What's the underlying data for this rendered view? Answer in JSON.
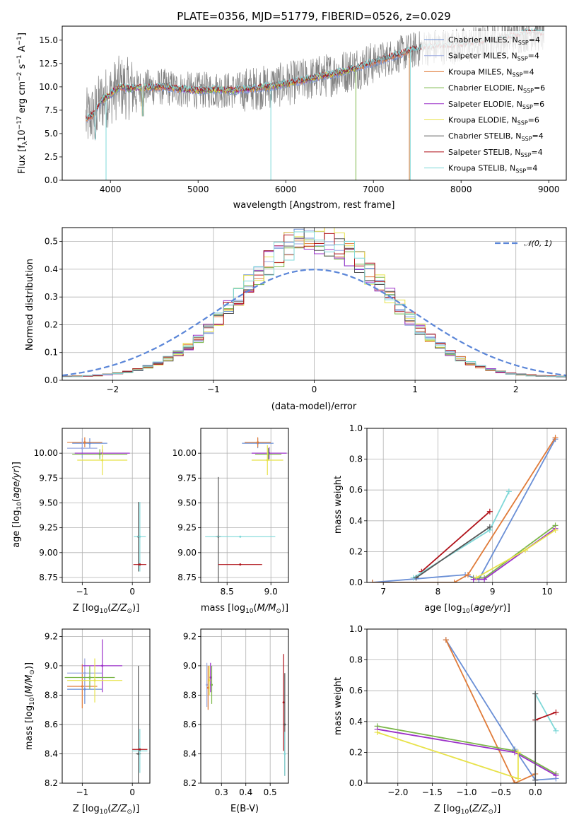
{
  "title": "PLATE=0356, MJD=51779, FIBERID=0526, z=0.029",
  "colors": {
    "Chabrier MILES": "#6a8fd6",
    "Salpeter MILES": "#9aa8e0",
    "Kroupa MILES": "#e07b39",
    "Chabrier ELODIE": "#7ab648",
    "Salpeter ELODIE": "#9b30c8",
    "Kroupa ELODIE": "#e8e24a",
    "Chabrier STELIB": "#555555",
    "Salpeter STELIB": "#b0121a",
    "Kroupa STELIB": "#7fd8d8",
    "data": "#808080",
    "normal": "#5b86d8"
  },
  "chart_data": [
    {
      "id": "spectrum",
      "type": "line",
      "xlabel": "wavelength [Angstrom, rest frame]",
      "ylabel": "Flux [fλ10⁻¹⁷ erg cm⁻² s⁻¹ A⁻¹]",
      "xlim": [
        3450,
        9200
      ],
      "ylim": [
        0,
        16.5
      ],
      "xticks": [
        4000,
        5000,
        6000,
        7000,
        8000,
        9000
      ],
      "yticks": [
        0.0,
        2.5,
        5.0,
        7.5,
        10.0,
        12.5,
        15.0
      ],
      "legend_position": "top-right",
      "legend": [
        "Chabrier MILES, NSSP=4",
        "Salpeter MILES, NSSP=4",
        "Kroupa MILES, NSSP=4",
        "Chabrier ELODIE, NSSP=6",
        "Salpeter ELODIE, NSSP=6",
        "Kroupa ELODIE, NSSP=6",
        "Chabrier STELIB, NSSP=4",
        "Salpeter STELIB, NSSP=4",
        "Kroupa STELIB, NSSP=4"
      ],
      "continuum": {
        "x": [
          3720,
          3800,
          3900,
          4000,
          4100,
          4200,
          4400,
          4600,
          4800,
          5000,
          5200,
          5400,
          5600,
          5800,
          6000,
          6200,
          6400,
          6600,
          6800,
          7000,
          7200,
          7400,
          7600,
          7800,
          8000,
          8200,
          8400,
          8600,
          8800,
          8950
        ],
        "y": [
          6.5,
          7.0,
          8.5,
          9.2,
          10.0,
          9.8,
          9.9,
          10.0,
          9.7,
          9.6,
          9.7,
          9.6,
          9.8,
          10.0,
          10.3,
          10.7,
          11.1,
          11.5,
          12.0,
          12.6,
          13.2,
          13.8,
          14.2,
          14.3,
          14.4,
          14.6,
          15.0,
          15.4,
          15.8,
          15.6
        ]
      },
      "data_noise_amplitude": 2.0
    },
    {
      "id": "residual-histogram",
      "type": "line",
      "xlabel": "(data-model)/error",
      "ylabel": "Normed distribution",
      "xlim": [
        -2.5,
        2.5
      ],
      "ylim": [
        0,
        0.55
      ],
      "xticks": [
        -2,
        -1,
        0,
        1,
        2
      ],
      "yticks": [
        0.0,
        0.1,
        0.2,
        0.3,
        0.4,
        0.5
      ],
      "grid": true,
      "legend_position": "top-right",
      "legend": [
        "𝒩(0, 1)"
      ],
      "bin_width": 0.1,
      "normal": {
        "mean": 0,
        "sigma": 1
      }
    },
    {
      "id": "age-vs-Z",
      "type": "scatter",
      "xlabel": "Z [log10(Z/Z⊙)]",
      "ylabel": "age  [log10(age/yr)]",
      "xlim": [
        -1.4,
        0.35
      ],
      "ylim": [
        8.7,
        10.25
      ],
      "xticks": [
        -1,
        0
      ],
      "yticks": [
        8.75,
        9.0,
        9.25,
        9.5,
        9.75,
        10.0
      ],
      "grid": true,
      "points": [
        {
          "model": "Chabrier MILES",
          "x": -0.85,
          "xerr": 0.35,
          "y": 10.1,
          "yerr": 0.05
        },
        {
          "model": "Kroupa MILES",
          "x": -0.95,
          "xerr": 0.35,
          "y": 10.11,
          "yerr": 0.05
        },
        {
          "model": "Salpeter MILES",
          "x": -1.0,
          "xerr": 0.3,
          "y": 10.05,
          "yerr": 0.1
        },
        {
          "model": "Salpeter ELODIE",
          "x": -0.6,
          "xerr": 0.55,
          "y": 10.0,
          "yerr": 0.04
        },
        {
          "model": "Chabrier ELODIE",
          "x": -0.65,
          "xerr": 0.55,
          "y": 9.99,
          "yerr": 0.05
        },
        {
          "model": "Kroupa ELODIE",
          "x": -0.6,
          "xerr": 0.5,
          "y": 9.93,
          "yerr": 0.15
        },
        {
          "model": "Chabrier STELIB",
          "x": 0.12,
          "xerr": 0.02,
          "y": 9.16,
          "yerr": 0.35
        },
        {
          "model": "Kroupa STELIB",
          "x": 0.15,
          "xerr": 0.12,
          "y": 9.16,
          "yerr": 0.35
        },
        {
          "model": "Salpeter STELIB",
          "x": 0.15,
          "xerr": 0.13,
          "y": 8.88,
          "yerr": 0.0
        }
      ]
    },
    {
      "id": "age-vs-mass",
      "type": "scatter",
      "xlabel": "mass [log10(M/M⊙)]",
      "ylabel": "",
      "xlim": [
        8.2,
        9.2
      ],
      "ylim": [
        8.7,
        10.25
      ],
      "xticks": [
        8.5,
        9.0
      ],
      "yticks": [
        8.75,
        9.0,
        9.25,
        9.5,
        9.75,
        10.0
      ],
      "grid": true,
      "points": [
        {
          "model": "Chabrier MILES",
          "x": 8.85,
          "xerr": 0.18,
          "y": 10.1,
          "yerr": 0.05
        },
        {
          "model": "Kroupa MILES",
          "x": 8.85,
          "xerr": 0.15,
          "y": 10.11,
          "yerr": 0.05
        },
        {
          "model": "Salpeter ELODIE",
          "x": 8.98,
          "xerr": 0.2,
          "y": 10.0,
          "yerr": 0.06
        },
        {
          "model": "Chabrier ELODIE",
          "x": 8.97,
          "xerr": 0.15,
          "y": 9.99,
          "yerr": 0.06
        },
        {
          "model": "Kroupa ELODIE",
          "x": 8.96,
          "xerr": 0.18,
          "y": 9.93,
          "yerr": 0.15
        },
        {
          "model": "Chabrier STELIB",
          "x": 8.4,
          "xerr": 0.03,
          "y": 9.16,
          "yerr": 0.6
        },
        {
          "model": "Kroupa STELIB",
          "x": 8.65,
          "xerr": 0.4,
          "y": 9.16,
          "yerr": 0.0
        },
        {
          "model": "Salpeter STELIB",
          "x": 8.65,
          "xerr": 0.25,
          "y": 8.88,
          "yerr": 0.0
        }
      ]
    },
    {
      "id": "massweight-vs-age",
      "type": "line",
      "xlabel": "age  [log10(age/yr)]",
      "ylabel": "mass weight",
      "xlim": [
        6.7,
        10.35
      ],
      "ylim": [
        0,
        1.0
      ],
      "xticks": [
        7,
        8,
        9,
        10
      ],
      "yticks": [
        0.0,
        0.2,
        0.4,
        0.6,
        0.8,
        1.0
      ],
      "grid": true,
      "series": [
        {
          "model": "Chabrier MILES",
          "x": [
            6.8,
            8.5,
            8.75,
            10.15
          ],
          "y": [
            0.0,
            0.05,
            0.02,
            0.93
          ]
        },
        {
          "model": "Kroupa MILES",
          "x": [
            6.8,
            8.3,
            8.55,
            10.15
          ],
          "y": [
            0.0,
            0.0,
            0.05,
            0.94
          ]
        },
        {
          "model": "Chabrier ELODIE",
          "x": [
            8.65,
            8.85,
            10.15
          ],
          "y": [
            0.03,
            0.03,
            0.37
          ]
        },
        {
          "model": "Salpeter ELODIE",
          "x": [
            8.65,
            8.85,
            10.15
          ],
          "y": [
            0.02,
            0.02,
            0.35
          ]
        },
        {
          "model": "Kroupa ELODIE",
          "x": [
            8.7,
            9.6,
            10.15
          ],
          "y": [
            0.03,
            0.21,
            0.34
          ]
        },
        {
          "model": "Salpeter STELIB",
          "x": [
            7.7,
            8.95
          ],
          "y": [
            0.07,
            0.46
          ]
        },
        {
          "model": "Kroupa STELIB",
          "x": [
            7.55,
            8.95,
            9.3
          ],
          "y": [
            0.03,
            0.34,
            0.59
          ]
        },
        {
          "model": "Chabrier STELIB",
          "x": [
            7.6,
            8.95
          ],
          "y": [
            0.03,
            0.36
          ]
        }
      ]
    },
    {
      "id": "mass-vs-Z",
      "type": "scatter",
      "xlabel": "Z [log10(Z/Z⊙)]",
      "ylabel": "mass [log10(M/M⊙)]",
      "xlim": [
        -1.4,
        0.35
      ],
      "ylim": [
        8.2,
        9.25
      ],
      "xticks": [
        -1,
        0
      ],
      "yticks": [
        8.2,
        8.4,
        8.6,
        8.8,
        9.0,
        9.2
      ],
      "grid": true,
      "points": [
        {
          "model": "Chabrier MILES",
          "x": -0.95,
          "xerr": 0.35,
          "y": 8.84,
          "yerr": 0.1
        },
        {
          "model": "Kroupa MILES",
          "x": -1.0,
          "xerr": 0.3,
          "y": 8.86,
          "yerr": 0.15
        },
        {
          "model": "Salpeter MILES",
          "x": -0.95,
          "xerr": 0.35,
          "y": 8.95,
          "yerr": 0.1
        },
        {
          "model": "Salpeter ELODIE",
          "x": -0.6,
          "xerr": 0.4,
          "y": 9.0,
          "yerr": 0.18
        },
        {
          "model": "Chabrier ELODIE",
          "x": -0.85,
          "xerr": 0.5,
          "y": 8.92,
          "yerr": 0.08
        },
        {
          "model": "Kroupa ELODIE",
          "x": -0.75,
          "xerr": 0.55,
          "y": 8.9,
          "yerr": 0.15
        },
        {
          "model": "Chabrier STELIB",
          "x": 0.12,
          "xerr": 0.05,
          "y": 8.4,
          "yerr": 0.6
        },
        {
          "model": "Kroupa STELIB",
          "x": 0.15,
          "xerr": 0.15,
          "y": 8.42,
          "yerr": 0.15
        },
        {
          "model": "Salpeter STELIB",
          "x": 0.15,
          "xerr": 0.15,
          "y": 8.43,
          "yerr": 0.0
        }
      ]
    },
    {
      "id": "mass-vs-ebv",
      "type": "scatter",
      "xlabel": "E(B-V)",
      "ylabel": "",
      "xlim": [
        0.215,
        0.575
      ],
      "ylim": [
        8.2,
        9.25
      ],
      "xticks": [
        0.3,
        0.4,
        0.5
      ],
      "yticks": [
        8.2,
        8.4,
        8.6,
        8.8,
        9.0,
        9.2
      ],
      "grid": true,
      "points": [
        {
          "model": "Salpeter MILES",
          "x": 0.24,
          "y": 8.87,
          "yerr": 0.15
        },
        {
          "model": "Kroupa MILES",
          "x": 0.245,
          "y": 8.85,
          "yerr": 0.15
        },
        {
          "model": "Salpeter ELODIE",
          "x": 0.255,
          "y": 8.92,
          "yerr": 0.1
        },
        {
          "model": "Chabrier ELODIE",
          "x": 0.26,
          "y": 8.87,
          "yerr": 0.13
        },
        {
          "model": "Kroupa ELODIE",
          "x": 0.25,
          "y": 8.9,
          "yerr": 0.1
        },
        {
          "model": "Salpeter STELIB",
          "x": 0.555,
          "y": 8.75,
          "yerr": 0.33
        },
        {
          "model": "Chabrier STELIB",
          "x": 0.56,
          "y": 8.6,
          "yerr": 0.35
        },
        {
          "model": "Kroupa STELIB",
          "x": 0.56,
          "y": 8.4,
          "yerr": 0.15
        }
      ]
    },
    {
      "id": "massweight-vs-Z",
      "type": "line",
      "xlabel": "Z [log10(Z/Z⊙)]",
      "ylabel": "mass weight",
      "xlim": [
        -2.45,
        0.45
      ],
      "ylim": [
        0,
        1.0
      ],
      "xticks": [
        -2.0,
        -1.5,
        -1.0,
        -0.5,
        0.0
      ],
      "yticks": [
        0.0,
        0.2,
        0.4,
        0.6,
        0.8,
        1.0
      ],
      "grid": true,
      "series": [
        {
          "model": "Chabrier MILES",
          "x": [
            -1.3,
            -0.3,
            0.0,
            0.3
          ],
          "y": [
            0.93,
            0.22,
            0.02,
            0.03
          ]
        },
        {
          "model": "Kroupa MILES",
          "x": [
            -1.3,
            -0.3,
            -0.3,
            0.0
          ],
          "y": [
            0.93,
            0.0,
            0.0,
            0.06
          ]
        },
        {
          "model": "Chabrier ELODIE",
          "x": [
            -2.3,
            -0.3,
            0.3
          ],
          "y": [
            0.37,
            0.21,
            0.06
          ]
        },
        {
          "model": "Salpeter ELODIE",
          "x": [
            -2.3,
            -0.3,
            0.3
          ],
          "y": [
            0.35,
            0.2,
            0.05
          ]
        },
        {
          "model": "Kroupa ELODIE",
          "x": [
            -2.3,
            -0.25,
            -0.25
          ],
          "y": [
            0.33,
            0.03,
            0.2
          ]
        },
        {
          "model": "Kroupa STELIB",
          "x": [
            0.0,
            0.0,
            0.3
          ],
          "y": [
            0.41,
            0.58,
            0.34
          ]
        },
        {
          "model": "Salpeter STELIB",
          "x": [
            0.0,
            0.3
          ],
          "y": [
            0.41,
            0.46
          ]
        },
        {
          "model": "Chabrier STELIB",
          "x": [
            0.0,
            0.0
          ],
          "y": [
            0.02,
            0.58
          ]
        }
      ]
    }
  ]
}
